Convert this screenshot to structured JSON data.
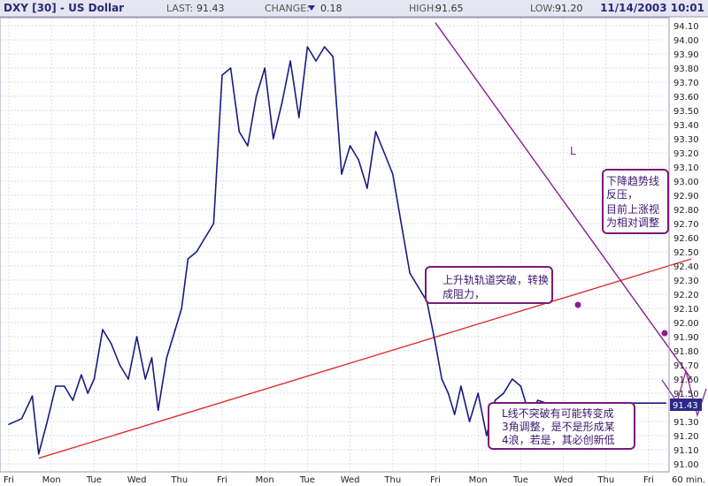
{
  "header": {
    "symbol": "DXY [30] - US Dollar",
    "last_label": "LAST:",
    "last_value": "91.43",
    "change_label": "CHANGE:",
    "change_value": "0.18",
    "change_direction": "down",
    "high_label": "HIGH:",
    "high_value": "91.65",
    "low_label": "LOW:",
    "low_value": "91.20",
    "datetime": "11/14/2003 10:01"
  },
  "chart_data": {
    "type": "line",
    "title": "DXY [30] - US Dollar",
    "ylim": [
      91.0,
      94.2
    ],
    "y_ticks": [
      "91.00",
      "91.10",
      "91.20",
      "91.30",
      "91.40",
      "91.50",
      "91.60",
      "91.70",
      "91.80",
      "91.90",
      "92.00",
      "92.10",
      "92.20",
      "92.30",
      "92.40",
      "92.50",
      "92.60",
      "92.70",
      "92.80",
      "92.90",
      "93.00",
      "93.10",
      "93.20",
      "93.30",
      "93.40",
      "93.50",
      "93.60",
      "93.70",
      "93.80",
      "93.90",
      "94.00",
      "94.10"
    ],
    "x_ticks": [
      "Fri",
      "Mon",
      "Tue",
      "Wed",
      "Thu",
      "Fri",
      "Mon",
      "Tue",
      "Wed",
      "Thu",
      "Fri",
      "Mon",
      "Tue",
      "Wed",
      "Thu",
      "Fri"
    ],
    "x_unit": "60 min.",
    "last_price_marker": "91.43",
    "series": [
      {
        "x": [
          0,
          0.3,
          0.55,
          0.7,
          0.9,
          1.1,
          1.3,
          1.5,
          1.7,
          1.85,
          2.0,
          2.2,
          2.4,
          2.6,
          2.8,
          3.0,
          3.2,
          3.35,
          3.5,
          3.7,
          3.9,
          4.05,
          4.2,
          4.4,
          4.6,
          4.8,
          5.0,
          5.2,
          5.4,
          5.6,
          5.8,
          6.0,
          6.2,
          6.4,
          6.6,
          6.8,
          7.0,
          7.2,
          7.4,
          7.6,
          7.8,
          8.0,
          8.2,
          8.4,
          8.6,
          8.8,
          9.0,
          9.2,
          9.4,
          9.6,
          9.8,
          10.0,
          10.15,
          10.3,
          10.45,
          10.6,
          10.8,
          11.0,
          11.2,
          11.4,
          11.6,
          11.8,
          12.0,
          12.2,
          12.4,
          12.6,
          12.8,
          13.0,
          13.2,
          13.4,
          13.6,
          13.8,
          14.0,
          14.2,
          14.4,
          14.6,
          14.8,
          15.0,
          15.2,
          15.4
        ],
        "y": [
          91.28,
          91.32,
          91.48,
          91.07,
          91.3,
          91.55,
          91.55,
          91.45,
          91.63,
          91.5,
          91.6,
          91.95,
          91.85,
          91.7,
          91.6,
          91.9,
          91.6,
          91.75,
          91.38,
          91.75,
          91.95,
          92.1,
          92.45,
          92.5,
          92.6,
          92.7,
          93.75,
          93.8,
          93.35,
          93.25,
          93.6,
          93.8,
          93.3,
          93.55,
          93.85,
          93.45,
          93.95,
          93.85,
          93.95,
          93.88,
          93.05,
          93.25,
          93.15,
          92.95,
          93.35,
          93.2,
          93.05,
          92.7,
          92.35,
          92.25,
          92.15,
          91.85,
          91.6,
          91.5,
          91.35,
          91.55,
          91.3,
          91.5,
          91.2,
          91.45,
          91.5,
          91.6,
          91.55,
          91.35,
          91.45,
          91.43,
          91.43,
          91.43,
          91.43,
          91.43,
          91.43,
          91.43,
          91.43,
          91.43,
          91.43,
          91.43,
          91.43,
          91.43,
          91.43,
          91.43
        ]
      }
    ],
    "trendlines": [
      {
        "name": "uptrend",
        "color": "#dd3030",
        "from": [
          0.7,
          91.04
        ],
        "to": [
          16.0,
          92.45
        ]
      },
      {
        "name": "downtrend",
        "color": "#8e1a8e",
        "from": [
          10.0,
          94.12
        ],
        "to": [
          16.0,
          91.6
        ]
      }
    ]
  },
  "annotations": {
    "letter_l": "L",
    "note1_line1": "下降趋势线",
    "note1_line2": "反压，",
    "note1_line3": "目前上涨视",
    "note1_line4": "为相对调整",
    "note2_line1": "上升轨轨道突破，转换",
    "note2_line2": "成阻力，",
    "note3_line1": "L线不突破有可能转变成",
    "note3_line2": "3角调整，是不是形成某",
    "note3_line3": "4浪，若是，其必创新低"
  },
  "colors": {
    "header_bg": "#e8e8f4",
    "price_line": "#1a1a80",
    "grid": "#cfd3e6",
    "accent_purple": "#8e1a8e",
    "note_border": "#7a1a7a"
  }
}
